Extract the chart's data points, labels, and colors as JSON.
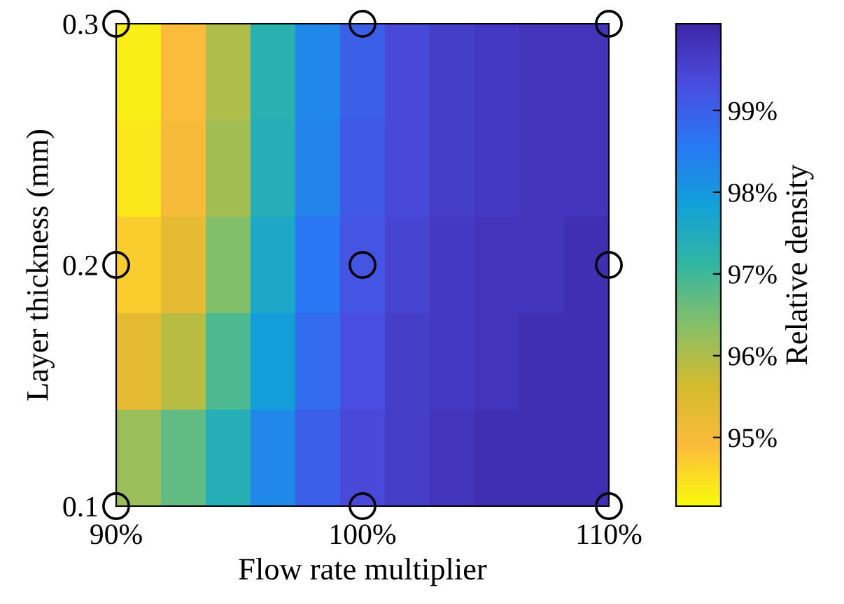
{
  "chart_data": {
    "type": "heatmap",
    "xlabel": "Flow rate multiplier",
    "ylabel": "Layer thickness (mm)",
    "clabel": "Relative density",
    "cells": [
      [
        94.3,
        94.9,
        96.0,
        97.3,
        98.3,
        99.0,
        99.4,
        99.6,
        99.7,
        99.8,
        99.8
      ],
      [
        94.4,
        95.0,
        96.1,
        97.4,
        98.4,
        99.1,
        99.4,
        99.6,
        99.7,
        99.8,
        99.8
      ],
      [
        94.7,
        95.3,
        96.4,
        97.6,
        98.6,
        99.2,
        99.5,
        99.7,
        99.8,
        99.8,
        99.9
      ],
      [
        95.3,
        95.9,
        96.9,
        97.9,
        98.8,
        99.3,
        99.6,
        99.7,
        99.8,
        99.9,
        99.9
      ],
      [
        96.2,
        96.7,
        97.4,
        98.3,
        99.0,
        99.4,
        99.6,
        99.8,
        99.9,
        99.9,
        99.9
      ]
    ],
    "clim": [
      94.16,
      100.06
    ],
    "cticks": [
      {
        "value": 95,
        "label": "95%"
      },
      {
        "value": 96,
        "label": "96%"
      },
      {
        "value": 97,
        "label": "97%"
      },
      {
        "value": 98,
        "label": "98%"
      },
      {
        "value": 99,
        "label": "99%"
      }
    ],
    "xlim": [
      90,
      110
    ],
    "xticks": [
      {
        "value": 90,
        "label": "90%"
      },
      {
        "value": 100,
        "label": "100%"
      },
      {
        "value": 110,
        "label": "110%"
      }
    ],
    "ylim": [
      0.1,
      0.3
    ],
    "yticks": [
      0.1,
      0.2,
      0.3
    ],
    "series": [
      {
        "type": "scatter",
        "marker": "circle",
        "color": "#000000",
        "x": [
          90,
          100,
          110,
          90,
          100,
          110,
          90,
          100,
          110
        ],
        "values": [
          0.1,
          0.1,
          0.1,
          0.2,
          0.2,
          0.2,
          0.3,
          0.3,
          0.3
        ]
      }
    ]
  }
}
